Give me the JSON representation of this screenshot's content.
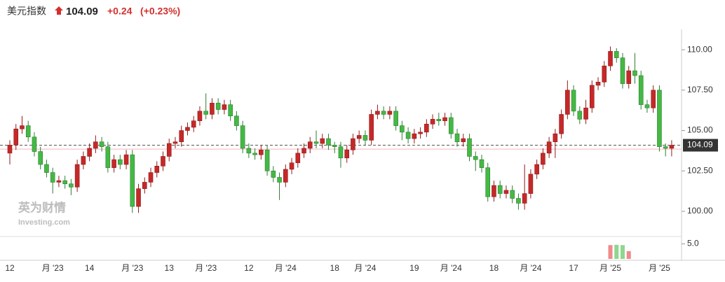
{
  "chart_data": {
    "type": "candlestick",
    "title": "美元指数",
    "change": "+0.24",
    "change_percent": "(+0.23%)",
    "last_price": 104.09,
    "previous_close": 103.85,
    "watermark": [
      "英为财情",
      "Investing.com"
    ],
    "up_color": "#c62828",
    "down_color": "#44b944",
    "ylim": [
      98.44,
      111.26
    ],
    "yticks": [
      {
        "value": 100,
        "label": "100.00"
      },
      {
        "value": 102.5,
        "label": "102.50"
      },
      {
        "value": 105,
        "label": "105.00"
      },
      {
        "value": 107.5,
        "label": "107.50"
      },
      {
        "value": 110,
        "label": "110.00"
      }
    ],
    "categories": [
      "12",
      null,
      null,
      null,
      null,
      null,
      null,
      "月 '23",
      null,
      null,
      null,
      null,
      null,
      "14",
      null,
      null,
      null,
      null,
      null,
      null,
      "月 '23",
      null,
      null,
      null,
      null,
      null,
      "13",
      null,
      null,
      null,
      null,
      null,
      "月 '23",
      null,
      null,
      null,
      null,
      null,
      null,
      "12",
      null,
      null,
      null,
      null,
      null,
      "月 '24",
      null,
      null,
      null,
      null,
      null,
      null,
      null,
      "18",
      null,
      null,
      null,
      null,
      "月 '24",
      null,
      null,
      null,
      null,
      null,
      null,
      null,
      "19",
      null,
      null,
      null,
      null,
      null,
      "月 '24",
      null,
      null,
      null,
      null,
      null,
      null,
      "18",
      null,
      null,
      null,
      null,
      null,
      "月 '24",
      null,
      null,
      null,
      null,
      null,
      null,
      "17",
      null,
      null,
      null,
      null,
      null,
      "月 '25",
      null,
      null,
      null,
      null,
      null,
      null,
      null,
      "月 '25",
      null,
      null
    ],
    "open": [
      103.6,
      104.1,
      105.1,
      105.3,
      104.6,
      103.7,
      102.9,
      102.4,
      101.8,
      101.9,
      101.7,
      101.5,
      102.9,
      103.4,
      103.9,
      104.3,
      104.0,
      102.7,
      103.2,
      102.9,
      103.5,
      100.3,
      101.4,
      101.8,
      102.4,
      102.8,
      103.4,
      104.2,
      104.3,
      105.0,
      105.2,
      105.6,
      106.2,
      106.0,
      106.7,
      106.3,
      106.6,
      105.9,
      105.3,
      103.9,
      103.6,
      103.5,
      103.8,
      102.5,
      102.1,
      101.8,
      102.6,
      103.0,
      103.6,
      103.9,
      104.3,
      104.2,
      104.5,
      104.1,
      104.0,
      103.3,
      103.8,
      104.5,
      104.7,
      104.4,
      106.0,
      106.2,
      106.0,
      106.2,
      105.3,
      104.9,
      104.5,
      104.8,
      104.9,
      105.4,
      105.7,
      105.6,
      105.8,
      104.8,
      104.3,
      104.5,
      103.4,
      103.2,
      102.7,
      100.9,
      101.6,
      101.1,
      101.3,
      100.8,
      100.5,
      101.1,
      102.3,
      102.9,
      103.6,
      104.3,
      104.8,
      106.0,
      107.5,
      106.2,
      105.7,
      106.4,
      107.8,
      108.0,
      109.0,
      109.9,
      109.5,
      107.9,
      108.7,
      108.4,
      106.6,
      106.4,
      107.5,
      104.0,
      103.9
    ],
    "high": [
      104.4,
      105.4,
      105.9,
      105.6,
      104.9,
      104.0,
      103.2,
      102.7,
      102.2,
      102.2,
      102.0,
      103.2,
      103.7,
      104.2,
      104.7,
      104.6,
      104.3,
      103.5,
      103.5,
      103.8,
      103.8,
      101.7,
      102.1,
      102.7,
      103.1,
      103.7,
      104.5,
      104.6,
      105.3,
      105.5,
      105.9,
      106.5,
      107.3,
      107.0,
      107.0,
      106.9,
      106.9,
      106.2,
      105.6,
      104.2,
      103.9,
      104.1,
      104.1,
      102.8,
      102.4,
      102.9,
      103.3,
      103.9,
      104.2,
      104.6,
      105.0,
      104.8,
      104.8,
      104.3,
      104.3,
      104.1,
      104.8,
      105.0,
      105.0,
      106.3,
      106.6,
      106.5,
      106.5,
      106.5,
      105.6,
      105.2,
      105.1,
      105.2,
      105.7,
      106.0,
      106.1,
      106.1,
      106.1,
      105.1,
      104.8,
      104.8,
      103.7,
      103.5,
      103.0,
      101.9,
      101.9,
      101.6,
      101.6,
      101.1,
      102.9,
      102.6,
      103.2,
      103.9,
      104.6,
      105.1,
      106.3,
      108.1,
      107.8,
      106.5,
      106.9,
      108.1,
      108.3,
      109.3,
      110.2,
      110.1,
      109.8,
      109.0,
      109.8,
      108.7,
      106.9,
      107.8,
      107.8,
      104.2,
      104.4
    ],
    "low": [
      102.9,
      103.8,
      104.8,
      104.3,
      103.4,
      102.6,
      102.1,
      101.1,
      101.5,
      101.4,
      101.0,
      101.2,
      102.6,
      103.1,
      103.6,
      103.7,
      102.4,
      102.4,
      102.6,
      102.6,
      99.9,
      99.9,
      101.1,
      101.5,
      102.1,
      102.5,
      103.1,
      103.9,
      104.0,
      104.7,
      104.9,
      105.3,
      105.7,
      105.7,
      106.0,
      106.0,
      105.6,
      105.0,
      103.6,
      103.3,
      103.2,
      103.2,
      102.2,
      101.8,
      100.7,
      101.5,
      102.3,
      102.7,
      103.3,
      103.6,
      103.9,
      103.9,
      103.8,
      103.6,
      102.7,
      103.0,
      103.5,
      104.2,
      104.1,
      104.1,
      105.7,
      105.7,
      105.7,
      105.0,
      104.4,
      104.2,
      104.2,
      104.5,
      104.6,
      105.1,
      105.3,
      105.3,
      104.5,
      104.0,
      104.0,
      103.1,
      102.5,
      102.4,
      100.6,
      100.6,
      100.8,
      100.8,
      100.5,
      100.1,
      100.1,
      100.8,
      102.0,
      102.6,
      103.3,
      103.3,
      104.5,
      105.7,
      105.9,
      105.4,
      105.4,
      106.1,
      107.5,
      107.7,
      108.7,
      109.2,
      107.6,
      107.6,
      107.9,
      106.3,
      106.1,
      106.1,
      103.7,
      103.4,
      103.4
    ],
    "close": [
      104.1,
      105.1,
      105.3,
      104.6,
      103.7,
      102.9,
      102.4,
      101.8,
      101.9,
      101.7,
      101.5,
      102.9,
      103.4,
      103.9,
      104.3,
      104.0,
      102.7,
      103.2,
      102.9,
      103.5,
      100.3,
      101.4,
      101.8,
      102.4,
      102.8,
      103.4,
      104.2,
      104.3,
      105.0,
      105.2,
      105.6,
      106.2,
      106.0,
      106.7,
      106.3,
      106.6,
      105.9,
      105.3,
      103.9,
      103.6,
      103.5,
      103.8,
      102.5,
      102.1,
      101.8,
      102.6,
      103.0,
      103.6,
      103.9,
      104.3,
      104.2,
      104.5,
      104.1,
      104.0,
      103.3,
      103.8,
      104.5,
      104.7,
      104.4,
      106.0,
      106.2,
      106.0,
      106.2,
      105.3,
      104.9,
      104.5,
      104.8,
      104.9,
      105.4,
      105.7,
      105.6,
      105.8,
      104.8,
      104.3,
      104.5,
      103.4,
      103.2,
      102.7,
      100.9,
      101.6,
      101.1,
      101.3,
      100.8,
      100.5,
      101.1,
      102.3,
      102.9,
      103.6,
      104.3,
      104.8,
      106.0,
      107.5,
      106.2,
      105.7,
      106.4,
      107.8,
      108.0,
      109.0,
      109.9,
      109.5,
      107.9,
      108.7,
      108.4,
      106.6,
      106.4,
      107.5,
      104.0,
      103.9,
      104.09
    ],
    "volume": {
      "ylim": [
        0,
        7
      ],
      "yticks": [
        {
          "value": 5,
          "label": "5.0"
        }
      ],
      "values": [
        null,
        null,
        null,
        null,
        null,
        null,
        null,
        null,
        null,
        null,
        null,
        null,
        null,
        null,
        null,
        null,
        null,
        null,
        null,
        null,
        null,
        null,
        null,
        null,
        null,
        null,
        null,
        null,
        null,
        null,
        null,
        null,
        null,
        null,
        null,
        null,
        null,
        null,
        null,
        null,
        null,
        null,
        null,
        null,
        null,
        null,
        null,
        null,
        null,
        null,
        null,
        null,
        null,
        null,
        null,
        null,
        null,
        null,
        null,
        null,
        null,
        null,
        null,
        null,
        null,
        null,
        null,
        null,
        null,
        null,
        null,
        null,
        null,
        null,
        null,
        null,
        null,
        null,
        null,
        null,
        null,
        null,
        null,
        null,
        null,
        null,
        null,
        null,
        null,
        null,
        null,
        null,
        null,
        null,
        null,
        null,
        null,
        null,
        4.6,
        4.7,
        4.6,
        2.6,
        null,
        null,
        null,
        null,
        null,
        null,
        null
      ]
    }
  }
}
